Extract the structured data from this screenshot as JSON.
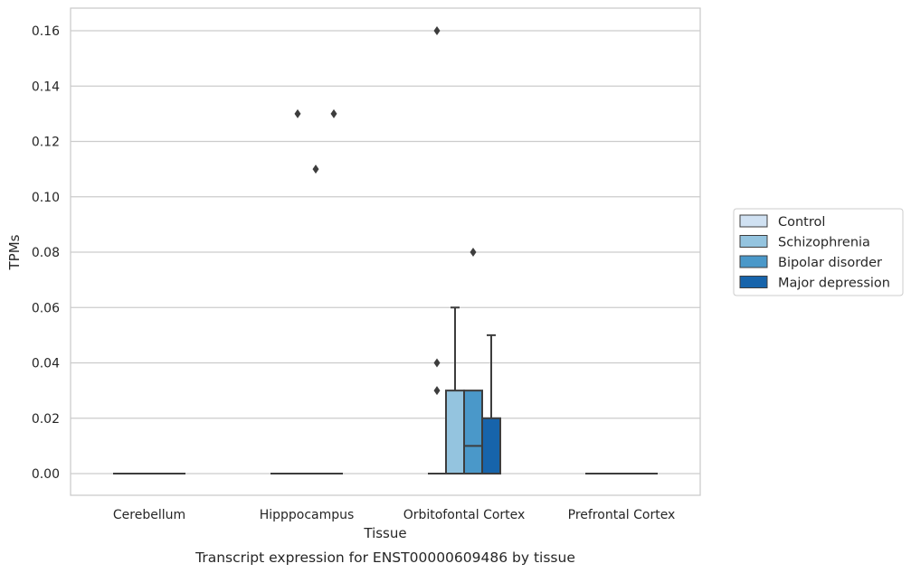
{
  "chart_data": {
    "type": "box",
    "caption": "Transcript expression for ENST00000609486 by tissue",
    "xlabel": "Tissue",
    "ylabel": "TPMs",
    "ylim": [
      -0.008,
      0.168
    ],
    "yticks": [
      0.0,
      0.02,
      0.04,
      0.06,
      0.08,
      0.1,
      0.12,
      0.14,
      0.16
    ],
    "ytick_labels": [
      "0.00",
      "0.02",
      "0.04",
      "0.06",
      "0.08",
      "0.10",
      "0.12",
      "0.14",
      "0.16"
    ],
    "grid": "horizontal",
    "legend_position": "right",
    "categories": [
      "Cerebellum",
      "Hipppocampus",
      "Orbitofontal Cortex",
      "Prefrontal Cortex"
    ],
    "series": [
      {
        "name": "Control",
        "color": "#d0e1f2",
        "boxes": [
          {
            "q1": 0,
            "median": 0,
            "q3": 0,
            "whisker_low": 0,
            "whisker_high": 0,
            "outliers": []
          },
          {
            "q1": 0,
            "median": 0,
            "q3": 0,
            "whisker_low": 0,
            "whisker_high": 0,
            "outliers": []
          },
          {
            "q1": 0,
            "median": 0,
            "q3": 0,
            "whisker_low": 0,
            "whisker_high": 0,
            "outliers": [
              0.16,
              0.04,
              0.03
            ]
          },
          {
            "q1": 0,
            "median": 0,
            "q3": 0,
            "whisker_low": 0,
            "whisker_high": 0,
            "outliers": []
          }
        ]
      },
      {
        "name": "Schizophrenia",
        "color": "#94c4df",
        "boxes": [
          {
            "q1": 0,
            "median": 0,
            "q3": 0,
            "whisker_low": 0,
            "whisker_high": 0,
            "outliers": []
          },
          {
            "q1": 0,
            "median": 0,
            "q3": 0,
            "whisker_low": 0,
            "whisker_high": 0,
            "outliers": [
              0.13
            ]
          },
          {
            "q1": 0,
            "median": 0,
            "q3": 0.03,
            "whisker_low": 0,
            "whisker_high": 0.06,
            "outliers": []
          },
          {
            "q1": 0,
            "median": 0,
            "q3": 0,
            "whisker_low": 0,
            "whisker_high": 0,
            "outliers": []
          }
        ]
      },
      {
        "name": "Bipolar disorder",
        "color": "#4a98c9",
        "boxes": [
          {
            "q1": 0,
            "median": 0,
            "q3": 0,
            "whisker_low": 0,
            "whisker_high": 0,
            "outliers": []
          },
          {
            "q1": 0,
            "median": 0,
            "q3": 0,
            "whisker_low": 0,
            "whisker_high": 0,
            "outliers": [
              0.11
            ]
          },
          {
            "q1": 0,
            "median": 0.01,
            "q3": 0.03,
            "whisker_low": 0,
            "whisker_high": 0.03,
            "outliers": [
              0.08
            ]
          },
          {
            "q1": 0,
            "median": 0,
            "q3": 0,
            "whisker_low": 0,
            "whisker_high": 0,
            "outliers": []
          }
        ]
      },
      {
        "name": "Major depression",
        "color": "#1764ab",
        "boxes": [
          {
            "q1": 0,
            "median": 0,
            "q3": 0,
            "whisker_low": 0,
            "whisker_high": 0,
            "outliers": []
          },
          {
            "q1": 0,
            "median": 0,
            "q3": 0,
            "whisker_low": 0,
            "whisker_high": 0,
            "outliers": [
              0.13
            ]
          },
          {
            "q1": 0,
            "median": 0,
            "q3": 0.02,
            "whisker_low": 0,
            "whisker_high": 0.05,
            "outliers": []
          },
          {
            "q1": 0,
            "median": 0,
            "q3": 0,
            "whisker_low": 0,
            "whisker_high": 0,
            "outliers": []
          }
        ]
      }
    ]
  }
}
